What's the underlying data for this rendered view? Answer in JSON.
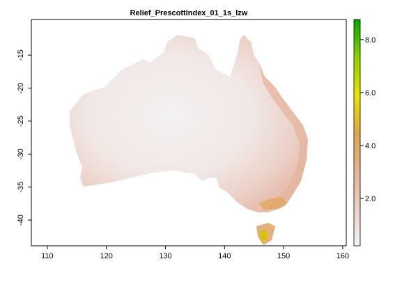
{
  "chart_data": {
    "type": "raster-map",
    "title": "Relief_PrescottIndex_01_1s_lzw",
    "xlim": [
      107.3,
      160.6
    ],
    "xticks": [
      110,
      120,
      130,
      140,
      150,
      160
    ],
    "ylim": [
      -43.9,
      -9.6
    ],
    "yticks": [
      -15,
      -20,
      -25,
      -30,
      -35,
      -40
    ],
    "colorbar": {
      "lim": [
        0.21,
        8.76
      ],
      "ticks": [
        {
          "value": 2,
          "label": "2.0"
        },
        {
          "value": 4,
          "label": "4.0"
        },
        {
          "value": 6,
          "label": "6.0"
        },
        {
          "value": 8,
          "label": "8.0"
        }
      ],
      "colors": [
        "#f2f2f2",
        "#ecd0c6",
        "#e6b58e",
        "#e3a548",
        "#e6e600",
        "#8fd000",
        "#00a600"
      ]
    }
  }
}
